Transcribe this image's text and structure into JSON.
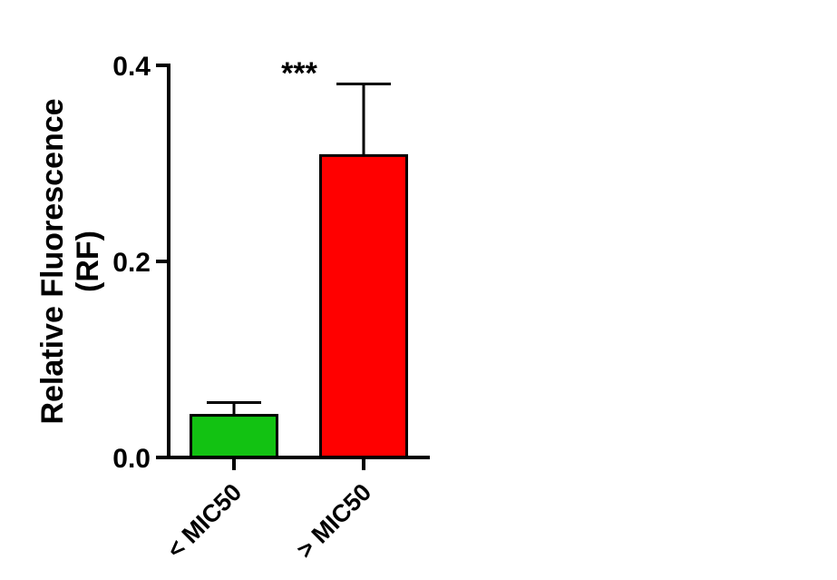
{
  "chart_data": {
    "type": "bar",
    "title": "",
    "xlabel": "",
    "ylabel_lines": [
      "Relative Fluorescence",
      "(RF)"
    ],
    "categories": [
      "< MIC50",
      "> MIC50"
    ],
    "values": [
      0.043,
      0.308
    ],
    "errors": [
      0.013,
      0.073
    ],
    "ylim": [
      0,
      0.4
    ],
    "yticks": [
      0.0,
      0.2,
      0.4
    ],
    "ytick_labels": [
      "0.0",
      "0.2",
      "0.4"
    ],
    "bar_colors": [
      "#12c212",
      "#ff0000"
    ],
    "annotation": "***",
    "grid": false,
    "legend": "none"
  }
}
